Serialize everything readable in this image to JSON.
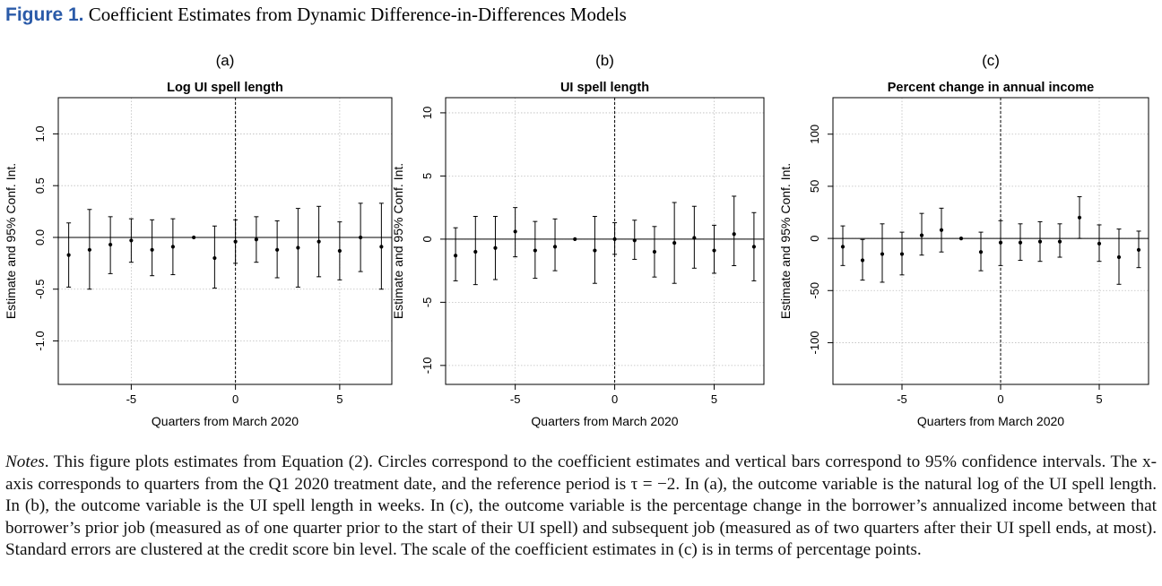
{
  "figure": {
    "label": "Figure 1.",
    "title": "Coefficient Estimates from Dynamic Difference-in-Differences Models"
  },
  "notes": {
    "label": "Notes",
    "text": ". This figure plots estimates from Equation (2). Circles correspond to the coefficient estimates and vertical bars correspond to 95% confidence intervals. The x-axis corresponds to quarters from the Q1 2020 treatment date, and the reference period is τ = −2. In (a), the outcome variable is the natural log of the UI spell length. In (b), the outcome variable is the UI spell length in weeks. In (c), the outcome variable is the percentage change in the borrower’s annualized income between that borrower’s prior job (measured as of one quarter prior to the start of their UI spell) and subsequent job (measured as of two quarters after their UI spell ends, at most). Standard errors are clustered at the credit score bin level. The scale of the coefficient estimates in (c) is in terms of percentage points."
  },
  "chart_data": [
    {
      "type": "scatter",
      "panel": "(a)",
      "title": "Log UI spell length",
      "xlabel": "Quarters from March 2020",
      "ylabel": "Estimate and 95% Conf. Int.",
      "xlim": [
        -8.5,
        7.5
      ],
      "ylim": [
        -1.42,
        1.35
      ],
      "xticks": [
        -5,
        0,
        5
      ],
      "yticks": [
        -1.0,
        -0.5,
        0.0,
        0.5,
        1.0
      ],
      "ytick_labels": [
        "-1.0",
        "-0.5",
        "0.0",
        "0.5",
        "1.0"
      ],
      "grid": true,
      "vline_x": 0,
      "hline_y": 0,
      "points": [
        {
          "x": -8,
          "y": -0.17,
          "lo": -0.48,
          "hi": 0.14
        },
        {
          "x": -7,
          "y": -0.12,
          "lo": -0.5,
          "hi": 0.27
        },
        {
          "x": -6,
          "y": -0.07,
          "lo": -0.35,
          "hi": 0.2
        },
        {
          "x": -5,
          "y": -0.03,
          "lo": -0.24,
          "hi": 0.18
        },
        {
          "x": -4,
          "y": -0.12,
          "lo": -0.37,
          "hi": 0.17
        },
        {
          "x": -3,
          "y": -0.09,
          "lo": -0.36,
          "hi": 0.18
        },
        {
          "x": -2,
          "y": 0.0
        },
        {
          "x": -1,
          "y": -0.2,
          "lo": -0.49,
          "hi": 0.11
        },
        {
          "x": 0,
          "y": -0.04,
          "lo": -0.25,
          "hi": 0.17
        },
        {
          "x": 1,
          "y": -0.02,
          "lo": -0.24,
          "hi": 0.2
        },
        {
          "x": 2,
          "y": -0.12,
          "lo": -0.39,
          "hi": 0.16
        },
        {
          "x": 3,
          "y": -0.1,
          "lo": -0.48,
          "hi": 0.28
        },
        {
          "x": 4,
          "y": -0.04,
          "lo": -0.38,
          "hi": 0.3
        },
        {
          "x": 5,
          "y": -0.13,
          "lo": -0.41,
          "hi": 0.15
        },
        {
          "x": 6,
          "y": 0.0,
          "lo": -0.33,
          "hi": 0.33
        },
        {
          "x": 7,
          "y": -0.09,
          "lo": -0.5,
          "hi": 0.33
        }
      ]
    },
    {
      "type": "scatter",
      "panel": "(b)",
      "title": "UI spell length",
      "xlabel": "Quarters from March 2020",
      "ylabel": "Estimate and 95% Conf. Int.",
      "xlim": [
        -8.5,
        7.5
      ],
      "ylim": [
        -11.5,
        11.2
      ],
      "xticks": [
        -5,
        0,
        5
      ],
      "yticks": [
        -10,
        -5,
        0,
        5,
        10
      ],
      "ytick_labels": [
        "-10",
        "-5",
        "0",
        "5",
        "10"
      ],
      "grid": true,
      "vline_x": 0,
      "hline_y": 0,
      "points": [
        {
          "x": -8,
          "y": -1.3,
          "lo": -3.3,
          "hi": 0.9
        },
        {
          "x": -7,
          "y": -1.0,
          "lo": -3.6,
          "hi": 1.8
        },
        {
          "x": -6,
          "y": -0.7,
          "lo": -3.2,
          "hi": 1.8
        },
        {
          "x": -5,
          "y": 0.6,
          "lo": -1.4,
          "hi": 2.5
        },
        {
          "x": -4,
          "y": -0.9,
          "lo": -3.1,
          "hi": 1.4
        },
        {
          "x": -3,
          "y": -0.6,
          "lo": -2.5,
          "hi": 1.6
        },
        {
          "x": -2,
          "y": 0.0
        },
        {
          "x": -1,
          "y": -0.9,
          "lo": -3.5,
          "hi": 1.8
        },
        {
          "x": 0,
          "y": 0.0,
          "lo": -1.2,
          "hi": 1.3
        },
        {
          "x": 1,
          "y": -0.1,
          "lo": -1.6,
          "hi": 1.5
        },
        {
          "x": 2,
          "y": -1.0,
          "lo": -3.0,
          "hi": 1.0
        },
        {
          "x": 3,
          "y": -0.3,
          "lo": -3.5,
          "hi": 2.9
        },
        {
          "x": 4,
          "y": 0.1,
          "lo": -2.3,
          "hi": 2.6
        },
        {
          "x": 5,
          "y": -0.9,
          "lo": -2.7,
          "hi": 1.1
        },
        {
          "x": 6,
          "y": 0.4,
          "lo": -2.1,
          "hi": 3.4
        },
        {
          "x": 7,
          "y": -0.6,
          "lo": -3.3,
          "hi": 2.1
        }
      ]
    },
    {
      "type": "scatter",
      "panel": "(c)",
      "title": "Percent change in annual income",
      "xlabel": "Quarters from March 2020",
      "ylabel": "Estimate and 95% Conf. Int.",
      "xlim": [
        -8.5,
        7.5
      ],
      "ylim": [
        -140,
        135
      ],
      "xticks": [
        -5,
        0,
        5
      ],
      "yticks": [
        -100,
        -50,
        0,
        50,
        100
      ],
      "ytick_labels": [
        "-100",
        "-50",
        "0",
        "50",
        "100"
      ],
      "grid": true,
      "vline_x": 0,
      "hline_y": 0,
      "points": [
        {
          "x": -8,
          "y": -8,
          "lo": -26,
          "hi": 12
        },
        {
          "x": -7,
          "y": -21,
          "lo": -40,
          "hi": -1
        },
        {
          "x": -6,
          "y": -15,
          "lo": -42,
          "hi": 14
        },
        {
          "x": -5,
          "y": -15,
          "lo": -35,
          "hi": 6
        },
        {
          "x": -4,
          "y": 3,
          "lo": -16,
          "hi": 24
        },
        {
          "x": -3,
          "y": 8,
          "lo": -13,
          "hi": 29
        },
        {
          "x": -2,
          "y": 0
        },
        {
          "x": -1,
          "y": -13,
          "lo": -31,
          "hi": 6
        },
        {
          "x": 0,
          "y": -4,
          "lo": -26,
          "hi": 17
        },
        {
          "x": 1,
          "y": -4,
          "lo": -21,
          "hi": 14
        },
        {
          "x": 2,
          "y": -3,
          "lo": -22,
          "hi": 16
        },
        {
          "x": 3,
          "y": -3,
          "lo": -18,
          "hi": 14
        },
        {
          "x": 4,
          "y": 20,
          "lo": 0,
          "hi": 40
        },
        {
          "x": 5,
          "y": -5,
          "lo": -22,
          "hi": 13
        },
        {
          "x": 6,
          "y": -18,
          "lo": -44,
          "hi": 9
        },
        {
          "x": 7,
          "y": -11,
          "lo": -28,
          "hi": 7
        }
      ]
    }
  ]
}
